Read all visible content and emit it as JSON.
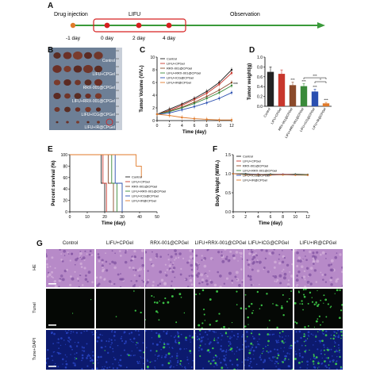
{
  "panelA": {
    "label": "A",
    "drug_injection": "Drug injection",
    "lifu": "LIFU",
    "observation": "Observation",
    "timepoints": [
      "-1 day",
      "0 day",
      "2 day",
      "4 day"
    ],
    "colors": {
      "arrow": "#3a9a3a",
      "dot": "#d62020",
      "box": "#d62020"
    }
  },
  "panelB": {
    "label": "B",
    "groups": [
      "Control",
      "LIFU+CPGel",
      "RRX-001@CPGel",
      "LIFU+RRX-001@CPGel",
      "LIFU+ICG@CPGel",
      "LIFU+IR@CPGel"
    ]
  },
  "groups": [
    {
      "name": "Control",
      "color": "#222222"
    },
    {
      "name": "LIFU+CPGel",
      "color": "#c8372d"
    },
    {
      "name": "RRX-001@CPGel",
      "color": "#8b4a2b"
    },
    {
      "name": "LIFU+RRX-001@CPGel",
      "color": "#3a8a3a"
    },
    {
      "name": "LIFU+ICG@CPGel",
      "color": "#2a4fb0"
    },
    {
      "name": "LIFU+IR@CPGel",
      "color": "#e07a2a"
    }
  ],
  "chart_data": [
    {
      "id": "C",
      "label": "C",
      "type": "line",
      "xlabel": "Time (day)",
      "ylabel": "Tumor Volume (V/V₀)",
      "x": [
        0,
        2,
        4,
        6,
        8,
        10,
        12
      ],
      "xlim": [
        0,
        12
      ],
      "ylim": [
        0,
        10
      ],
      "yticks": [
        0,
        2,
        4,
        6,
        8,
        10
      ],
      "annotation": "***",
      "series": [
        {
          "name": "Control",
          "values": [
            1,
            1.8,
            2.6,
            3.5,
            4.6,
            6.0,
            8.0
          ]
        },
        {
          "name": "LIFU+CPGel",
          "values": [
            1,
            1.6,
            2.4,
            3.3,
            4.3,
            5.7,
            7.5
          ]
        },
        {
          "name": "RRX-001@CPGel",
          "values": [
            1,
            1.5,
            2.1,
            2.9,
            3.8,
            4.8,
            6.0
          ]
        },
        {
          "name": "LIFU+RRX-001@CPGel",
          "values": [
            1,
            1.4,
            2.0,
            2.7,
            3.5,
            4.4,
            5.5
          ]
        },
        {
          "name": "LIFU+ICG@CPGel",
          "values": [
            1,
            1.2,
            1.7,
            2.2,
            2.8,
            3.5,
            4.4
          ]
        },
        {
          "name": "LIFU+IR@CPGel",
          "values": [
            1,
            0.8,
            0.5,
            0.3,
            0.2,
            0.1,
            0.1
          ]
        }
      ]
    },
    {
      "id": "D",
      "label": "D",
      "type": "bar",
      "ylabel": "Tumor weight(g)",
      "ylim": [
        0,
        1.0
      ],
      "yticks": [
        0,
        0.2,
        0.4,
        0.6,
        0.8,
        1.0
      ],
      "categories": [
        "Control",
        "LIFU+CPGel",
        "RRX-001@CPGel",
        "LIFU+RRX-001@CPGel",
        "LIFU+ICG@CPGel",
        "LIFU+IR@CPGel"
      ],
      "values": [
        0.7,
        0.66,
        0.43,
        0.41,
        0.3,
        0.06
      ],
      "errors": [
        0.1,
        0.08,
        0.06,
        0.05,
        0.05,
        0.02
      ],
      "significance": [
        "",
        "",
        "***",
        "***",
        "***",
        "***"
      ],
      "brackets": [
        "***",
        "*"
      ]
    },
    {
      "id": "E",
      "label": "E",
      "type": "line",
      "xlabel": "Time (day)",
      "ylabel": "Percent survival (%)",
      "xlim": [
        0,
        50
      ],
      "xticks": [
        0,
        10,
        20,
        30,
        40,
        50
      ],
      "ylim": [
        0,
        100
      ],
      "yticks": [
        0,
        20,
        40,
        60,
        80,
        100
      ],
      "series": [
        {
          "name": "Control",
          "steps": [
            [
              0,
              100
            ],
            [
              18,
              100
            ],
            [
              18,
              50
            ],
            [
              20,
              50
            ],
            [
              20,
              0
            ]
          ]
        },
        {
          "name": "LIFU+CPGel",
          "steps": [
            [
              0,
              100
            ],
            [
              19,
              100
            ],
            [
              19,
              50
            ],
            [
              21,
              50
            ],
            [
              21,
              0
            ]
          ]
        },
        {
          "name": "RRX-001@CPGel",
          "steps": [
            [
              0,
              100
            ],
            [
              22,
              100
            ],
            [
              22,
              50
            ],
            [
              25,
              50
            ],
            [
              25,
              0
            ]
          ]
        },
        {
          "name": "LIFU+RRX-001@CPGel",
          "steps": [
            [
              0,
              100
            ],
            [
              24,
              100
            ],
            [
              24,
              50
            ],
            [
              27,
              50
            ],
            [
              27,
              0
            ]
          ]
        },
        {
          "name": "LIFU+ICG@CPGel",
          "steps": [
            [
              0,
              100
            ],
            [
              26,
              100
            ],
            [
              26,
              50
            ],
            [
              30,
              50
            ],
            [
              30,
              0
            ]
          ]
        },
        {
          "name": "LIFU+IR@CPGel",
          "steps": [
            [
              0,
              100
            ],
            [
              38,
              100
            ],
            [
              38,
              80
            ],
            [
              41,
              80
            ],
            [
              41,
              60
            ]
          ]
        }
      ]
    },
    {
      "id": "F",
      "label": "F",
      "type": "line",
      "xlabel": "Time (day)",
      "ylabel": "Body Weight (W/W₀)",
      "x": [
        0,
        2,
        4,
        6,
        8,
        10,
        12
      ],
      "xlim": [
        0,
        12
      ],
      "ylim": [
        0.0,
        1.5
      ],
      "yticks": [
        0.0,
        0.5,
        1.0,
        1.5
      ],
      "series": [
        {
          "name": "Control",
          "values": [
            1.0,
            1.0,
            0.98,
            0.99,
            0.98,
            0.99,
            0.98
          ]
        },
        {
          "name": "LIFU+CPGel",
          "values": [
            1.0,
            0.99,
            0.98,
            0.98,
            0.99,
            0.98,
            0.97
          ]
        },
        {
          "name": "RRX-001@CPGel",
          "values": [
            1.0,
            0.98,
            0.99,
            0.97,
            0.98,
            0.97,
            0.98
          ]
        },
        {
          "name": "LIFU+RRX-001@CPGel",
          "values": [
            1.0,
            0.99,
            0.97,
            0.98,
            0.97,
            0.98,
            0.97
          ]
        },
        {
          "name": "LIFU+ICG@CPGel",
          "values": [
            1.0,
            0.98,
            0.98,
            0.97,
            0.98,
            0.97,
            0.96
          ]
        },
        {
          "name": "LIFU+IR@CPGel",
          "values": [
            1.0,
            0.97,
            0.97,
            0.96,
            0.97,
            0.96,
            0.96
          ]
        }
      ]
    }
  ],
  "panelG": {
    "label": "G",
    "columns": [
      "Control",
      "LIFU+CPGel",
      "RRX-001@CPGel",
      "LIFU+RRX-001@CPGel",
      "LIFU+ICG@CPGel",
      "LIFU+IR@CPGel"
    ],
    "rows": [
      "HE",
      "Tunel",
      "Tune+DAPI"
    ],
    "colors": {
      "he": "#b78ac8",
      "tunel": "#050805",
      "dapi": "#0c1a6e",
      "green": "#3fd14a"
    }
  }
}
